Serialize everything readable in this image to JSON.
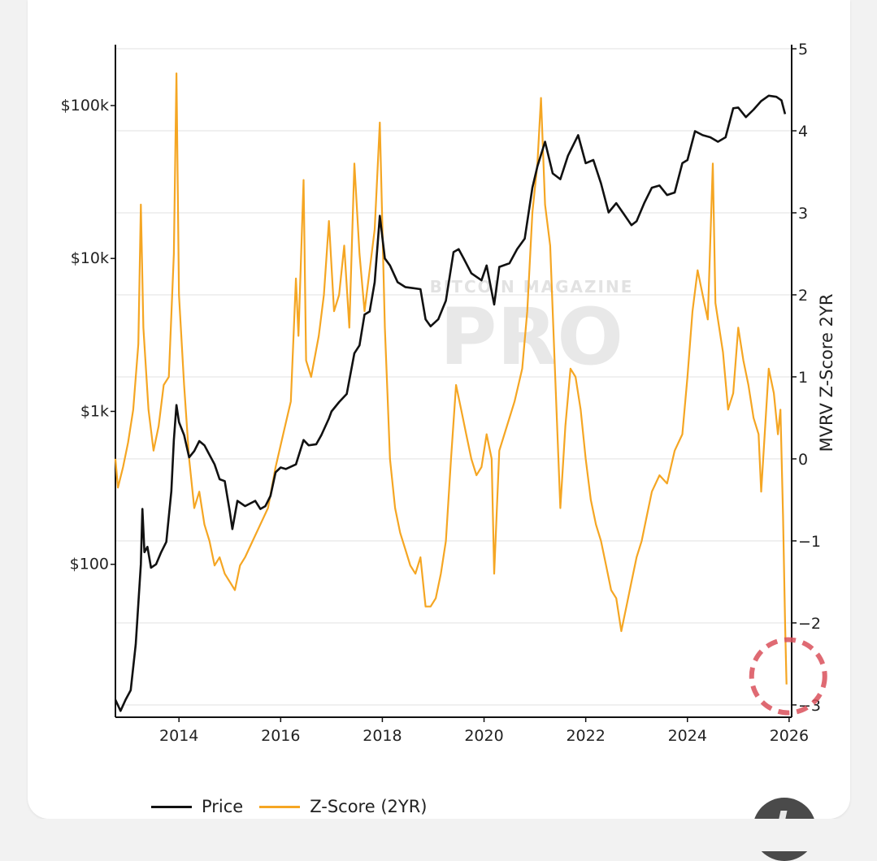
{
  "legend": {
    "price_label": "Price",
    "zscore_label": "Z-Score (2YR)"
  },
  "colors": {
    "price": "#111111",
    "zscore": "#f5a623",
    "highlight": "#d9505a",
    "grid": "#ebebeb",
    "watermark": "#d6d6d6"
  },
  "watermark": {
    "top": "BITCOIN MAGAZINE",
    "bottom": "PRO"
  },
  "fab": {
    "icon": "scroll-action-icon"
  },
  "chart_data": {
    "type": "line",
    "title": "",
    "xlabel": "",
    "ylabel_left": "",
    "ylabel_right": "MVRV Z-Score 2YR",
    "x_ticks": [
      "2014",
      "2016",
      "2018",
      "2020",
      "2022",
      "2024",
      "2026"
    ],
    "y_left_ticks": [
      {
        "value": 100,
        "label": "$100"
      },
      {
        "value": 1000,
        "label": "$1k"
      },
      {
        "value": 10000,
        "label": "$10k"
      },
      {
        "value": 100000,
        "label": "$100k"
      }
    ],
    "y_left_scale": "log",
    "y_left_range": [
      10,
      250000
    ],
    "y_right_ticks": [
      {
        "value": 5,
        "label": "5"
      },
      {
        "value": 4,
        "label": "4"
      },
      {
        "value": 3,
        "label": "3"
      },
      {
        "value": 2,
        "label": "2"
      },
      {
        "value": 1,
        "label": "1"
      },
      {
        "value": 0,
        "label": "0"
      },
      {
        "value": -1,
        "label": "−1"
      },
      {
        "value": -2,
        "label": "−2"
      },
      {
        "value": -3,
        "label": "−3"
      }
    ],
    "y_right_range": [
      -3.15,
      5.05
    ],
    "x_range": [
      2012.75,
      2026.05
    ],
    "grid": "horizontal",
    "legend_position": "bottom-left",
    "series": [
      {
        "name": "Price",
        "axis": "left",
        "points": [
          [
            2012.75,
            13
          ],
          [
            2012.85,
            11
          ],
          [
            2012.95,
            13
          ],
          [
            2013.05,
            15
          ],
          [
            2013.15,
            30
          ],
          [
            2013.25,
            100
          ],
          [
            2013.28,
            230
          ],
          [
            2013.32,
            120
          ],
          [
            2013.38,
            130
          ],
          [
            2013.45,
            95
          ],
          [
            2013.55,
            100
          ],
          [
            2013.65,
            120
          ],
          [
            2013.75,
            140
          ],
          [
            2013.85,
            300
          ],
          [
            2013.9,
            650
          ],
          [
            2013.95,
            1100
          ],
          [
            2014.0,
            850
          ],
          [
            2014.1,
            700
          ],
          [
            2014.2,
            500
          ],
          [
            2014.3,
            550
          ],
          [
            2014.4,
            640
          ],
          [
            2014.5,
            600
          ],
          [
            2014.6,
            520
          ],
          [
            2014.7,
            450
          ],
          [
            2014.8,
            360
          ],
          [
            2014.9,
            350
          ],
          [
            2015.0,
            220
          ],
          [
            2015.05,
            170
          ],
          [
            2015.15,
            260
          ],
          [
            2015.3,
            240
          ],
          [
            2015.5,
            260
          ],
          [
            2015.6,
            230
          ],
          [
            2015.7,
            240
          ],
          [
            2015.8,
            280
          ],
          [
            2015.9,
            400
          ],
          [
            2016.0,
            430
          ],
          [
            2016.1,
            420
          ],
          [
            2016.3,
            450
          ],
          [
            2016.45,
            650
          ],
          [
            2016.55,
            600
          ],
          [
            2016.7,
            610
          ],
          [
            2016.8,
            700
          ],
          [
            2016.95,
            900
          ],
          [
            2017.0,
            1000
          ],
          [
            2017.15,
            1150
          ],
          [
            2017.3,
            1300
          ],
          [
            2017.45,
            2400
          ],
          [
            2017.55,
            2700
          ],
          [
            2017.65,
            4300
          ],
          [
            2017.75,
            4500
          ],
          [
            2017.85,
            7000
          ],
          [
            2017.95,
            19000
          ],
          [
            2018.05,
            10000
          ],
          [
            2018.15,
            9000
          ],
          [
            2018.3,
            7000
          ],
          [
            2018.45,
            6500
          ],
          [
            2018.6,
            6400
          ],
          [
            2018.75,
            6300
          ],
          [
            2018.85,
            4000
          ],
          [
            2018.95,
            3600
          ],
          [
            2019.1,
            4000
          ],
          [
            2019.25,
            5300
          ],
          [
            2019.4,
            11000
          ],
          [
            2019.5,
            11500
          ],
          [
            2019.6,
            10000
          ],
          [
            2019.75,
            8000
          ],
          [
            2019.95,
            7200
          ],
          [
            2020.05,
            9000
          ],
          [
            2020.2,
            5000
          ],
          [
            2020.3,
            8800
          ],
          [
            2020.5,
            9300
          ],
          [
            2020.65,
            11500
          ],
          [
            2020.8,
            13500
          ],
          [
            2020.95,
            29000
          ],
          [
            2021.05,
            40000
          ],
          [
            2021.2,
            58000
          ],
          [
            2021.35,
            36000
          ],
          [
            2021.5,
            33000
          ],
          [
            2021.65,
            47000
          ],
          [
            2021.85,
            64000
          ],
          [
            2022.0,
            42000
          ],
          [
            2022.15,
            44000
          ],
          [
            2022.3,
            31000
          ],
          [
            2022.45,
            20000
          ],
          [
            2022.6,
            23000
          ],
          [
            2022.75,
            19500
          ],
          [
            2022.9,
            16500
          ],
          [
            2023.0,
            17500
          ],
          [
            2023.15,
            23000
          ],
          [
            2023.3,
            29000
          ],
          [
            2023.45,
            30000
          ],
          [
            2023.6,
            26000
          ],
          [
            2023.75,
            27000
          ],
          [
            2023.9,
            42000
          ],
          [
            2024.0,
            44000
          ],
          [
            2024.15,
            68000
          ],
          [
            2024.3,
            64000
          ],
          [
            2024.45,
            62000
          ],
          [
            2024.6,
            58000
          ],
          [
            2024.75,
            62000
          ],
          [
            2024.9,
            96000
          ],
          [
            2025.0,
            97000
          ],
          [
            2025.15,
            84000
          ],
          [
            2025.3,
            94000
          ],
          [
            2025.45,
            107000
          ],
          [
            2025.6,
            116000
          ],
          [
            2025.75,
            114000
          ],
          [
            2025.85,
            108000
          ],
          [
            2025.92,
            88000
          ]
        ]
      },
      {
        "name": "Z-Score (2YR)",
        "axis": "right",
        "points": [
          [
            2012.75,
            0.0
          ],
          [
            2012.8,
            -0.35
          ],
          [
            2012.9,
            -0.1
          ],
          [
            2013.0,
            0.2
          ],
          [
            2013.1,
            0.6
          ],
          [
            2013.2,
            1.4
          ],
          [
            2013.25,
            3.1
          ],
          [
            2013.3,
            1.6
          ],
          [
            2013.4,
            0.6
          ],
          [
            2013.5,
            0.1
          ],
          [
            2013.6,
            0.4
          ],
          [
            2013.7,
            0.9
          ],
          [
            2013.8,
            1.0
          ],
          [
            2013.9,
            2.5
          ],
          [
            2013.95,
            4.7
          ],
          [
            2014.0,
            2.0
          ],
          [
            2014.1,
            0.9
          ],
          [
            2014.2,
            0.0
          ],
          [
            2014.3,
            -0.6
          ],
          [
            2014.4,
            -0.4
          ],
          [
            2014.5,
            -0.8
          ],
          [
            2014.6,
            -1.0
          ],
          [
            2014.7,
            -1.3
          ],
          [
            2014.8,
            -1.2
          ],
          [
            2014.9,
            -1.4
          ],
          [
            2015.0,
            -1.5
          ],
          [
            2015.1,
            -1.6
          ],
          [
            2015.2,
            -1.3
          ],
          [
            2015.3,
            -1.2
          ],
          [
            2015.45,
            -1.0
          ],
          [
            2015.6,
            -0.8
          ],
          [
            2015.75,
            -0.6
          ],
          [
            2015.9,
            -0.1
          ],
          [
            2016.05,
            0.3
          ],
          [
            2016.2,
            0.7
          ],
          [
            2016.3,
            2.2
          ],
          [
            2016.35,
            1.5
          ],
          [
            2016.45,
            3.4
          ],
          [
            2016.5,
            1.2
          ],
          [
            2016.6,
            1.0
          ],
          [
            2016.75,
            1.5
          ],
          [
            2016.85,
            2.0
          ],
          [
            2016.95,
            2.9
          ],
          [
            2017.05,
            1.8
          ],
          [
            2017.15,
            2.0
          ],
          [
            2017.25,
            2.6
          ],
          [
            2017.35,
            1.6
          ],
          [
            2017.45,
            3.6
          ],
          [
            2017.55,
            2.5
          ],
          [
            2017.65,
            1.8
          ],
          [
            2017.75,
            2.3
          ],
          [
            2017.85,
            2.8
          ],
          [
            2017.95,
            4.1
          ],
          [
            2018.05,
            1.6
          ],
          [
            2018.1,
            0.8
          ],
          [
            2018.15,
            0.0
          ],
          [
            2018.25,
            -0.6
          ],
          [
            2018.35,
            -0.9
          ],
          [
            2018.45,
            -1.1
          ],
          [
            2018.55,
            -1.3
          ],
          [
            2018.65,
            -1.4
          ],
          [
            2018.75,
            -1.2
          ],
          [
            2018.85,
            -1.8
          ],
          [
            2018.95,
            -1.8
          ],
          [
            2019.05,
            -1.7
          ],
          [
            2019.15,
            -1.4
          ],
          [
            2019.25,
            -1.0
          ],
          [
            2019.35,
            0.0
          ],
          [
            2019.45,
            0.9
          ],
          [
            2019.55,
            0.6
          ],
          [
            2019.65,
            0.3
          ],
          [
            2019.75,
            0.0
          ],
          [
            2019.85,
            -0.2
          ],
          [
            2019.95,
            -0.1
          ],
          [
            2020.05,
            0.3
          ],
          [
            2020.15,
            0.0
          ],
          [
            2020.2,
            -1.4
          ],
          [
            2020.3,
            0.1
          ],
          [
            2020.45,
            0.4
          ],
          [
            2020.6,
            0.7
          ],
          [
            2020.75,
            1.1
          ],
          [
            2020.85,
            1.8
          ],
          [
            2020.95,
            3.0
          ],
          [
            2021.05,
            3.6
          ],
          [
            2021.12,
            4.4
          ],
          [
            2021.2,
            3.1
          ],
          [
            2021.3,
            2.6
          ],
          [
            2021.4,
            1.0
          ],
          [
            2021.5,
            -0.6
          ],
          [
            2021.6,
            0.4
          ],
          [
            2021.7,
            1.1
          ],
          [
            2021.8,
            1.0
          ],
          [
            2021.9,
            0.6
          ],
          [
            2022.0,
            0.0
          ],
          [
            2022.1,
            -0.5
          ],
          [
            2022.2,
            -0.8
          ],
          [
            2022.3,
            -1.0
          ],
          [
            2022.4,
            -1.3
          ],
          [
            2022.5,
            -1.6
          ],
          [
            2022.6,
            -1.7
          ],
          [
            2022.7,
            -2.1
          ],
          [
            2022.8,
            -1.8
          ],
          [
            2022.9,
            -1.5
          ],
          [
            2023.0,
            -1.2
          ],
          [
            2023.1,
            -1.0
          ],
          [
            2023.2,
            -0.7
          ],
          [
            2023.3,
            -0.4
          ],
          [
            2023.45,
            -0.2
          ],
          [
            2023.6,
            -0.3
          ],
          [
            2023.75,
            0.1
          ],
          [
            2023.9,
            0.3
          ],
          [
            2024.0,
            1.0
          ],
          [
            2024.1,
            1.8
          ],
          [
            2024.2,
            2.3
          ],
          [
            2024.3,
            2.0
          ],
          [
            2024.4,
            1.7
          ],
          [
            2024.5,
            3.6
          ],
          [
            2024.55,
            1.9
          ],
          [
            2024.7,
            1.3
          ],
          [
            2024.8,
            0.6
          ],
          [
            2024.9,
            0.8
          ],
          [
            2025.0,
            1.6
          ],
          [
            2025.1,
            1.2
          ],
          [
            2025.2,
            0.9
          ],
          [
            2025.3,
            0.5
          ],
          [
            2025.4,
            0.3
          ],
          [
            2025.45,
            -0.4
          ],
          [
            2025.55,
            0.6
          ],
          [
            2025.6,
            1.1
          ],
          [
            2025.7,
            0.8
          ],
          [
            2025.78,
            0.3
          ],
          [
            2025.83,
            0.6
          ],
          [
            2025.88,
            -0.7
          ],
          [
            2025.92,
            -2.0
          ],
          [
            2025.95,
            -2.75
          ]
        ]
      }
    ],
    "annotations": [
      {
        "type": "dashed-circle",
        "x": 2025.95,
        "y_right": -2.65,
        "label": ""
      }
    ]
  }
}
